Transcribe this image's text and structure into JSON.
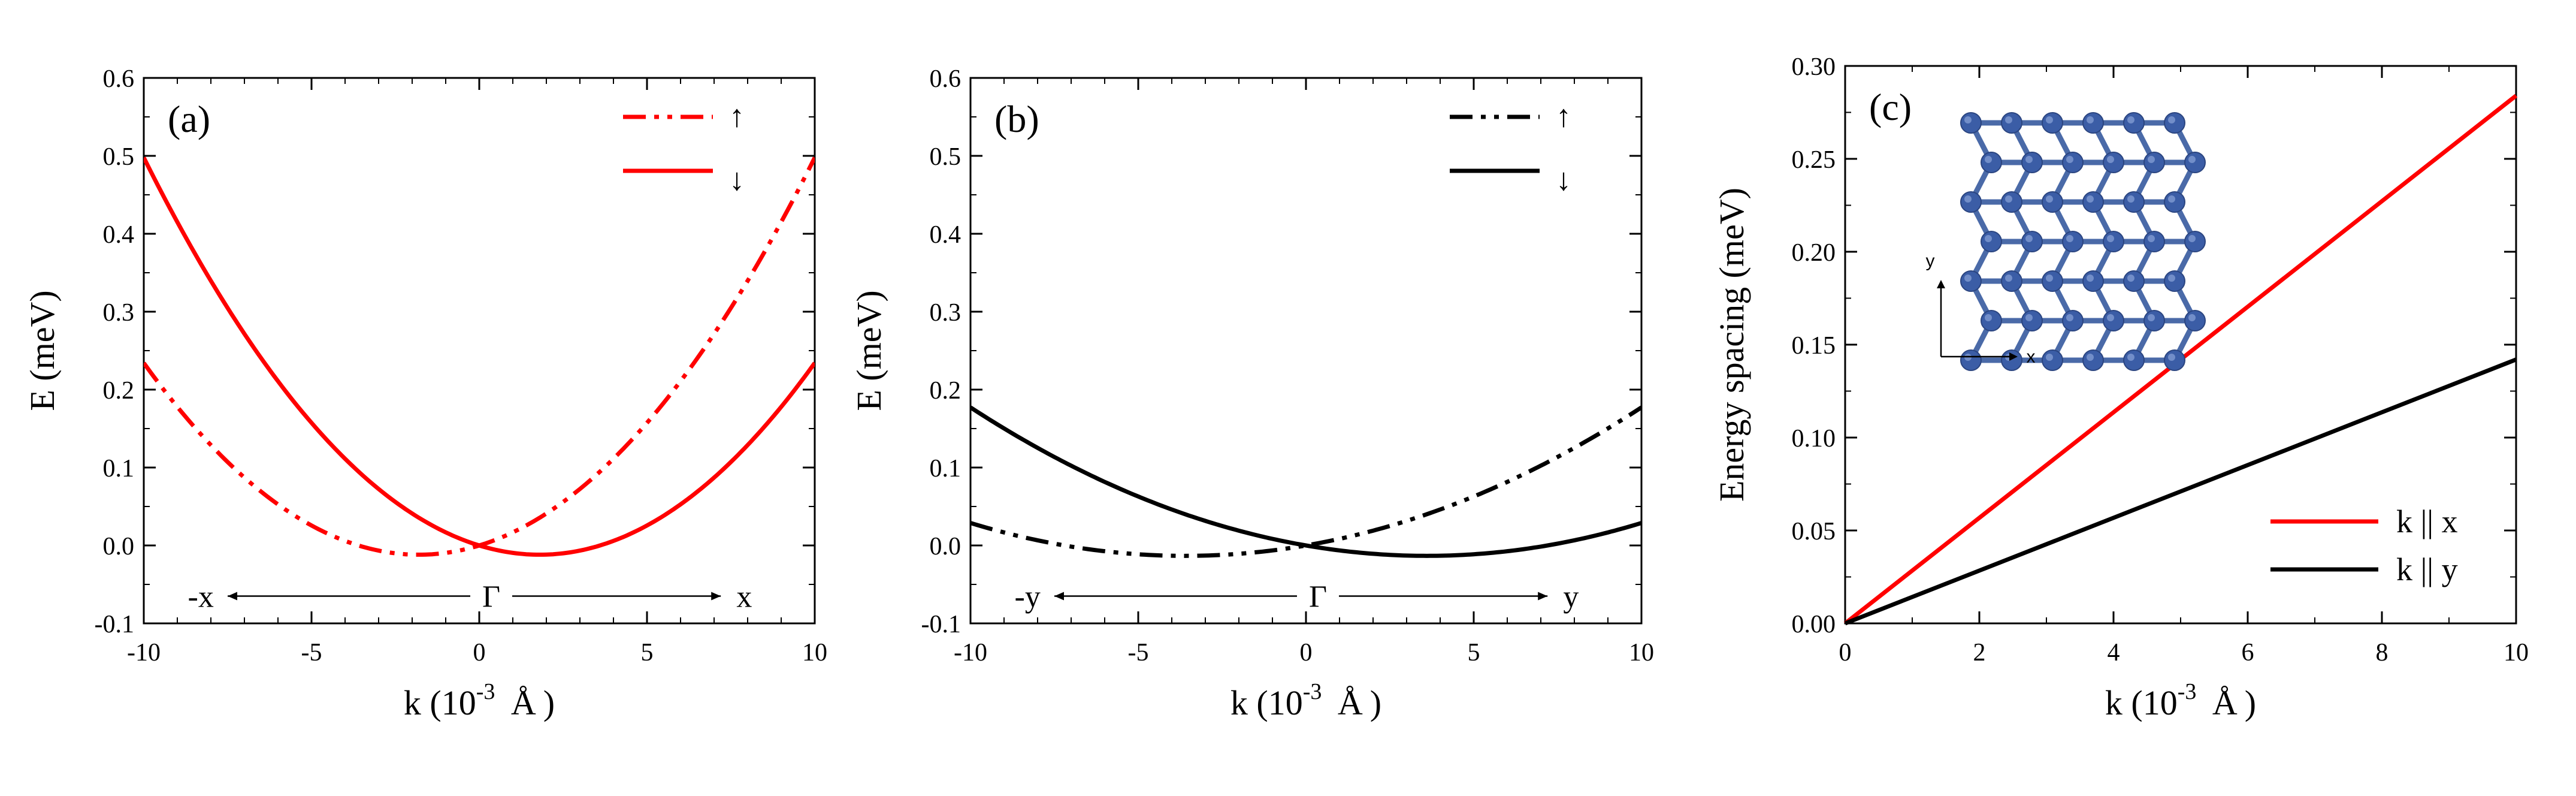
{
  "chart_data": [
    {
      "panel": "(a)",
      "type": "line",
      "xlabel": "k (10-3 Å)",
      "xlabel_parts": {
        "main": "k (10",
        "exp": "-3",
        "unit": "Å",
        "close": ")"
      },
      "ylabel": "E (meV)",
      "xlim": [
        -10,
        10
      ],
      "ylim": [
        -0.1,
        0.6
      ],
      "xticks": [
        "-10",
        "-5",
        "0",
        "5",
        "10"
      ],
      "yticks": [
        "-0.1",
        "0.0",
        "0.1",
        "0.2",
        "0.3",
        "0.4",
        "0.5",
        "0.6"
      ],
      "legend": {
        "up": "↑",
        "down": "↓"
      },
      "direction": {
        "left": "-x",
        "center": "Γ",
        "right": "x"
      },
      "color": "#ff0000",
      "series": [
        {
          "name": "↑",
          "style": "dash-dot-dot",
          "a": 0.00366,
          "shift": -1.8,
          "x": [
            -10,
            -7.5,
            -5,
            -2.5,
            -1.8,
            0,
            2.5,
            5,
            7.5,
            10
          ],
          "y": [
            0.235,
            0.115,
            0.015,
            -0.014,
            -0.016,
            -0.004,
            0.058,
            0.158,
            0.31,
            0.51
          ]
        },
        {
          "name": "↓",
          "style": "solid",
          "a": 0.00366,
          "shift": 1.8,
          "x": [
            -10,
            -7.5,
            -5,
            -2.5,
            0,
            1.8,
            2.5,
            5,
            7.5,
            10
          ],
          "y": [
            0.51,
            0.31,
            0.158,
            0.058,
            -0.004,
            -0.016,
            -0.014,
            0.015,
            0.115,
            0.235
          ]
        }
      ]
    },
    {
      "panel": "(b)",
      "type": "line",
      "xlabel": "k (10-3 Å)",
      "xlabel_parts": {
        "main": "k (10",
        "exp": "-3",
        "unit": "Å",
        "close": ")"
      },
      "ylabel": "E (meV)",
      "xlim": [
        -10,
        10
      ],
      "ylim": [
        -0.1,
        0.6
      ],
      "xticks": [
        "-10",
        "-5",
        "0",
        "5",
        "10"
      ],
      "yticks": [
        "-0.1",
        "0.0",
        "0.1",
        "0.2",
        "0.3",
        "0.4",
        "0.5",
        "0.6"
      ],
      "legend": {
        "up": "↑",
        "down": "↓"
      },
      "direction": {
        "left": "-y",
        "center": "Γ",
        "right": "y"
      },
      "color": "#000000",
      "series": [
        {
          "name": "↑",
          "style": "dash-dot-dot",
          "a": 0.00103,
          "shift": -3.6,
          "x": [
            -10,
            -7.5,
            -5,
            -3.6,
            -2.5,
            0,
            2.5,
            5,
            7.5,
            10
          ],
          "y": [
            0.025,
            0.003,
            -0.011,
            -0.013,
            -0.012,
            0.0,
            0.025,
            0.063,
            0.112,
            0.16
          ]
        },
        {
          "name": "↓",
          "style": "solid",
          "a": 0.00103,
          "shift": 3.6,
          "x": [
            -10,
            -7.5,
            -5,
            -2.5,
            0,
            2.5,
            3.6,
            5,
            7.5,
            10
          ],
          "y": [
            0.16,
            0.112,
            0.063,
            0.025,
            0.0,
            -0.012,
            -0.013,
            -0.011,
            0.003,
            0.025
          ]
        }
      ]
    },
    {
      "panel": "(c)",
      "type": "line",
      "xlabel": "k (10-3 Å)",
      "xlabel_parts": {
        "main": "k (10",
        "exp": "-3",
        "unit": "Å",
        "close": ")"
      },
      "ylabel": "Energy spacing (meV)",
      "xlim": [
        0,
        10
      ],
      "ylim": [
        0,
        0.3
      ],
      "xticks": [
        "0",
        "2",
        "4",
        "6",
        "8",
        "10"
      ],
      "yticks": [
        "0.00",
        "0.05",
        "0.10",
        "0.15",
        "0.20",
        "0.25",
        "0.30"
      ],
      "inset_axes": {
        "x": "x",
        "y": "y"
      },
      "series": [
        {
          "name": "k || x",
          "color": "#ff0000",
          "x": [
            0,
            10
          ],
          "y": [
            0,
            0.284
          ]
        },
        {
          "name": "k || y",
          "color": "#000000",
          "x": [
            0,
            10
          ],
          "y": [
            0,
            0.142
          ]
        }
      ]
    }
  ]
}
